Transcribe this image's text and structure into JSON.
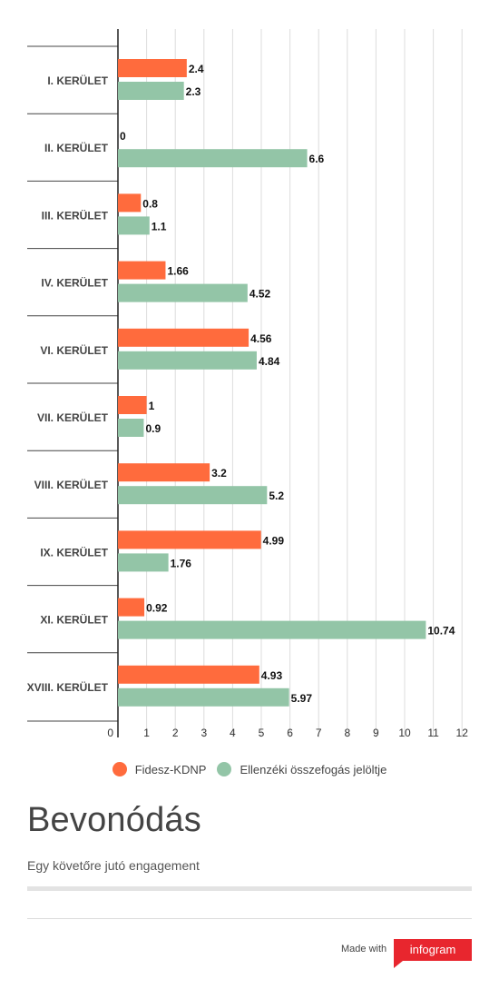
{
  "chart_data": {
    "type": "bar",
    "orientation": "horizontal",
    "categories": [
      "I. KERÜLET",
      "II. KERÜLET",
      "III. KERÜLET",
      "IV. KERÜLET",
      "VI. KERÜLET",
      "VII. KERÜLET",
      "VIII. KERÜLET",
      "IX. KERÜLET",
      "XI. KERÜLET",
      "XVIII. KERÜLET"
    ],
    "series": [
      {
        "name": "Fidesz-KDNP",
        "color": "#ff6b3d",
        "values": [
          2.4,
          0,
          0.8,
          1.66,
          4.56,
          1,
          3.2,
          4.99,
          0.92,
          4.93
        ]
      },
      {
        "name": "Ellenzéki összefogás jelöltje",
        "color": "#93c5a7",
        "values": [
          2.3,
          6.6,
          1.1,
          4.52,
          4.84,
          0.9,
          5.2,
          1.76,
          10.74,
          5.97
        ]
      }
    ],
    "value_labels": [
      [
        "2.4",
        "0",
        "0.8",
        "1.66",
        "4.56",
        "1",
        "3.2",
        "4.99",
        "0.92",
        "4.93"
      ],
      [
        "2.3",
        "6.6",
        "1.1",
        "4.52",
        "4.84",
        "0.9",
        "5.2",
        "1.76",
        "10.74",
        "5.97"
      ]
    ],
    "xticks": [
      0,
      1,
      2,
      3,
      4,
      5,
      6,
      7,
      8,
      9,
      10,
      11,
      12
    ],
    "xlim": [
      0,
      12
    ],
    "grid": true,
    "legend_position": "bottom-center",
    "title": "Bevonódás",
    "subtitle": "Egy követőre jutó engagement",
    "xlabel": "",
    "ylabel": ""
  },
  "footer": {
    "made_with": "Made with",
    "brand": "infogram",
    "brand_color": "#e8262e"
  }
}
